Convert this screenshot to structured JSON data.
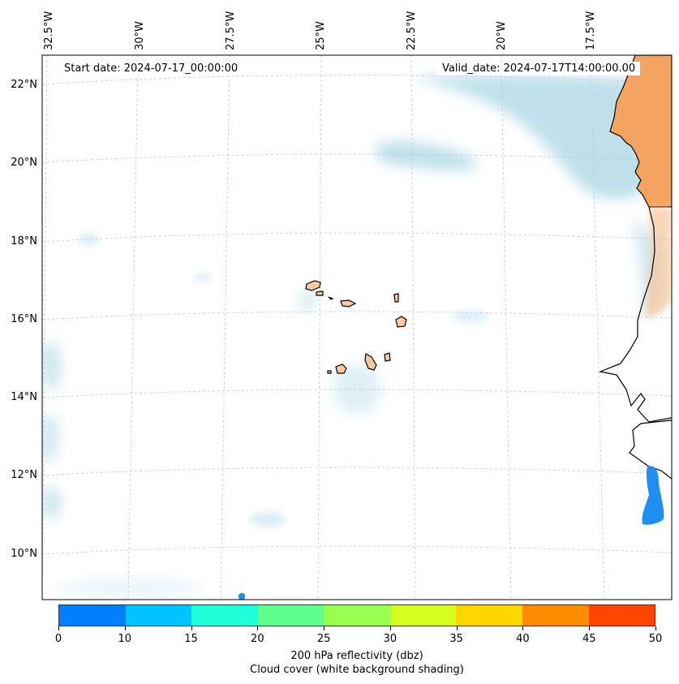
{
  "map": {
    "lon_labels": [
      "32.5°W",
      "30°W",
      "27.5°W",
      "25°W",
      "22.5°W",
      "20°W",
      "17.5°W"
    ],
    "lat_labels": [
      "22°N",
      "20°N",
      "18°N",
      "16°N",
      "14°N",
      "12°N",
      "10°N"
    ],
    "start_date": "Start date: 2024-07-17_00:00:00",
    "valid_date": "Valid_date: 2024-07-17T14:00:00.00"
  },
  "colors": {
    "land_africa": "#f4a460",
    "islands": "#f6c9a0",
    "cloud": "#a9d6e5",
    "reflectivity": "#1e8ff0",
    "grid": "#c8c8c8"
  },
  "colorbar": {
    "colors": [
      "#0080ff",
      "#00c4ff",
      "#1fffd9",
      "#5fff8f",
      "#99ff50",
      "#d6ff1f",
      "#ffd700",
      "#ff8c00",
      "#ff4500"
    ],
    "ticks": [
      "0",
      "10",
      "15",
      "20",
      "25",
      "30",
      "35",
      "40",
      "45",
      "50"
    ],
    "label": "200 hPa reflectivity (dbz)",
    "sublabel": "Cloud cover (white background shading)"
  }
}
